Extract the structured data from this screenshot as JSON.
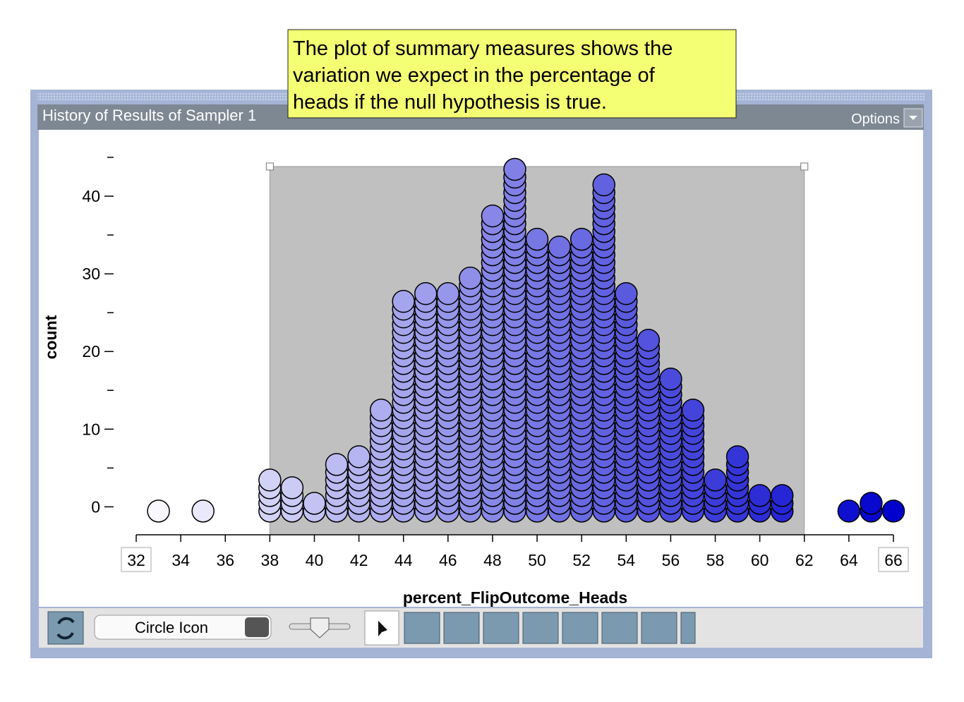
{
  "window": {
    "title": "History of Results of Sampler 1",
    "options": "Options"
  },
  "note": {
    "lines": [
      "The plot of summary measures shows the",
      "variation we expect in the percentage of",
      "heads if the null hypothesis is true."
    ]
  },
  "toolbar": {
    "select": "Circle Icon"
  },
  "chart_data": {
    "type": "dotstack",
    "x_label": "percent_FlipOutcome_Heads",
    "y_label": "count",
    "x": [
      33,
      35,
      38,
      39,
      40,
      41,
      42,
      43,
      44,
      45,
      46,
      47,
      48,
      49,
      50,
      51,
      52,
      53,
      54,
      55,
      56,
      57,
      58,
      59,
      60,
      61,
      64,
      65,
      66
    ],
    "values": [
      1,
      1,
      5,
      4,
      2,
      7,
      8,
      14,
      28,
      29,
      29,
      31,
      39,
      45,
      36,
      35,
      36,
      43,
      29,
      23,
      18,
      14,
      5,
      8,
      3,
      3,
      1,
      2,
      1
    ],
    "xlim": [
      32,
      66
    ],
    "xticks": [
      32,
      34,
      36,
      38,
      40,
      42,
      44,
      46,
      48,
      50,
      52,
      54,
      56,
      58,
      60,
      62,
      64,
      66
    ],
    "ylim": [
      -3.6,
      46
    ],
    "yticks": [
      0,
      10,
      20,
      30,
      40
    ],
    "yminor_ticks": [
      5,
      15,
      25,
      35,
      45
    ],
    "shaded_range": [
      38,
      62
    ],
    "color_low": "#ffffff",
    "color_high": "#0000cc"
  }
}
